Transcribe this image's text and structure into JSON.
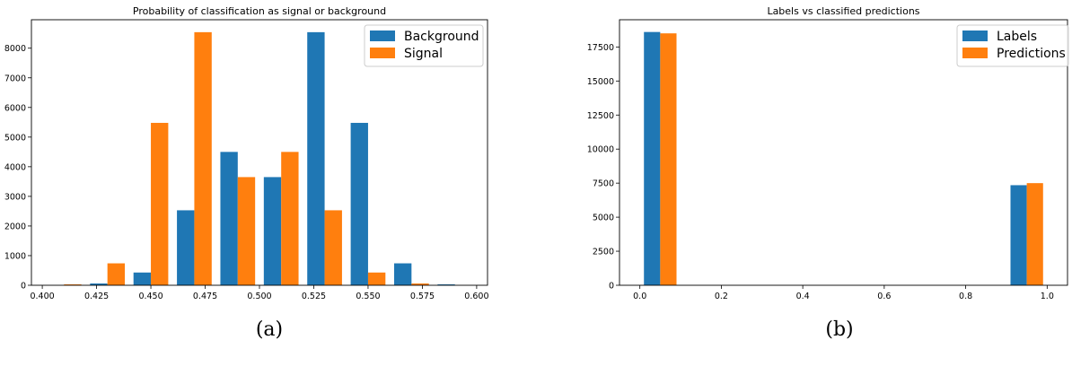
{
  "chart_data": [
    {
      "type": "bar",
      "title": "Probability of classification as signal or background",
      "xlabel": "",
      "ylabel": "",
      "xlim": [
        0.395,
        0.605
      ],
      "ylim": [
        0,
        8960
      ],
      "xticks": [
        "0.400",
        "0.425",
        "0.450",
        "0.475",
        "0.500",
        "0.525",
        "0.550",
        "0.575",
        "0.600"
      ],
      "xtick_values": [
        0.4,
        0.425,
        0.45,
        0.475,
        0.5,
        0.525,
        0.55,
        0.575,
        0.6
      ],
      "yticks": [
        "0",
        "1000",
        "2000",
        "3000",
        "4000",
        "5000",
        "6000",
        "7000",
        "8000"
      ],
      "ytick_values": [
        0,
        1000,
        2000,
        3000,
        4000,
        5000,
        6000,
        7000,
        8000
      ],
      "bin_edges": [
        0.4,
        0.42,
        0.44,
        0.46,
        0.48,
        0.5,
        0.52,
        0.54,
        0.56,
        0.58,
        0.6
      ],
      "series": [
        {
          "name": "Background",
          "color": "#1f77b4",
          "values": [
            0,
            60,
            430,
            2530,
            4500,
            3650,
            8540,
            5480,
            740,
            30
          ]
        },
        {
          "name": "Signal",
          "color": "#ff7f0e",
          "values": [
            30,
            740,
            5480,
            8540,
            3650,
            4500,
            2530,
            430,
            60,
            0
          ]
        }
      ],
      "legend_placement": "top-right",
      "grid": false,
      "caption": "(a)"
    },
    {
      "type": "bar",
      "title": "Labels vs classified predictions",
      "xlabel": "",
      "ylabel": "",
      "xlim": [
        -0.05,
        1.05
      ],
      "ylim": [
        0,
        19500
      ],
      "xticks": [
        "0.0",
        "0.2",
        "0.4",
        "0.6",
        "0.8",
        "1.0"
      ],
      "xtick_values": [
        0,
        0.2,
        0.4,
        0.6,
        0.8,
        1.0
      ],
      "yticks": [
        "0",
        "2500",
        "5000",
        "7500",
        "10000",
        "12500",
        "15000",
        "17500"
      ],
      "ytick_values": [
        0,
        2500,
        5000,
        7500,
        10000,
        12500,
        15000,
        17500
      ],
      "bin_edges": [
        0,
        0.1,
        0.2,
        0.3,
        0.4,
        0.5,
        0.6,
        0.7,
        0.8,
        0.9,
        1.0
      ],
      "series": [
        {
          "name": "Labels",
          "color": "#1f77b4",
          "values": [
            18600,
            0,
            0,
            0,
            0,
            0,
            0,
            0,
            0,
            7350
          ]
        },
        {
          "name": "Predictions",
          "color": "#ff7f0e",
          "values": [
            18500,
            0,
            0,
            0,
            0,
            0,
            0,
            0,
            0,
            7500
          ]
        }
      ],
      "legend_placement": "top-right",
      "grid": false,
      "caption": "(b)"
    }
  ]
}
